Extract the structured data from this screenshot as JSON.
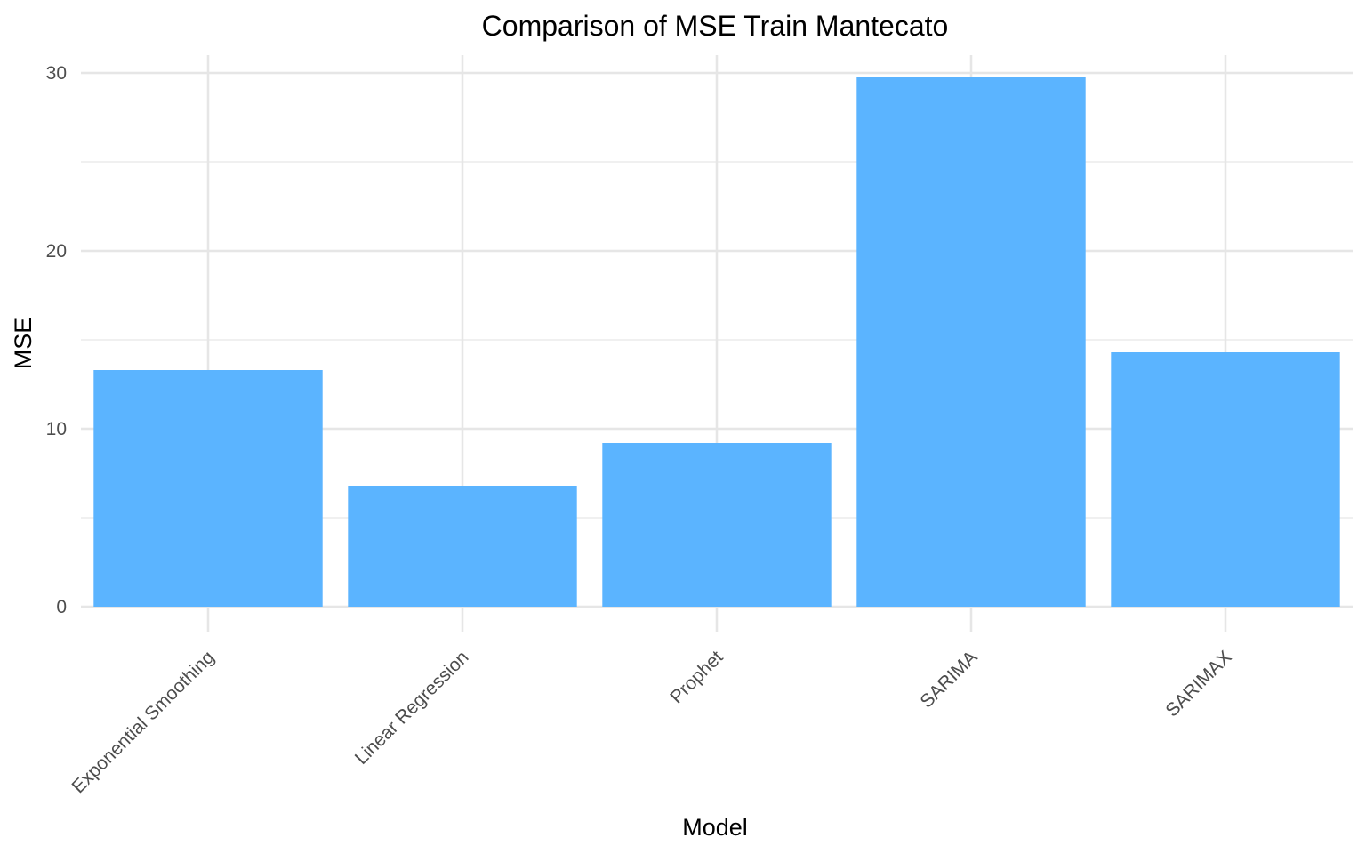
{
  "chart_data": {
    "type": "bar",
    "title": "Comparison of MSE Train Mantecato",
    "xlabel": "Model",
    "ylabel": "MSE",
    "categories": [
      "Exponential Smoothing",
      "Linear Regression",
      "Prophet",
      "SARIMA",
      "SARIMAX"
    ],
    "values": [
      13.3,
      6.8,
      9.2,
      29.8,
      14.3
    ],
    "ylim": [
      0,
      31
    ],
    "yticks": [
      0,
      10,
      20,
      30
    ],
    "grid": true,
    "legend": "none",
    "bar_color": "#5BB4FF"
  }
}
